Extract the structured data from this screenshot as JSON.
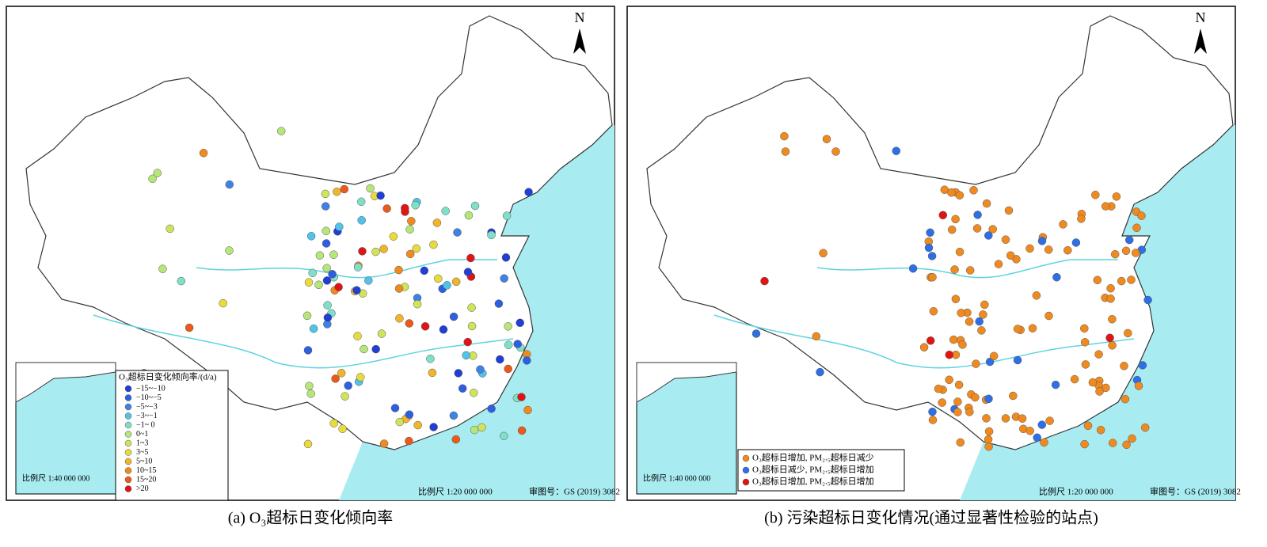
{
  "panels": [
    {
      "north": "N",
      "caption": "(a)  O₃超标日变化倾向率",
      "scale": "比例尺 1:20 000 000",
      "review_no": "审图号：GS (2019) 3082",
      "inset_scale": "比例尺 1:40 000 000",
      "legend": {
        "title": "O₃超标日变化倾向率/(d/a)",
        "items": [
          {
            "label": "−15~−10",
            "color": "#1f3fd6"
          },
          {
            "label": "−10~−5",
            "color": "#2e5fe0"
          },
          {
            "label": "−5~−3",
            "color": "#3f82e6"
          },
          {
            "label": "−3~−1",
            "color": "#4fc4e8"
          },
          {
            "label": "−1~ 0",
            "color": "#7fe0c8"
          },
          {
            "label": "0~1",
            "color": "#b5e67a"
          },
          {
            "label": "1~3",
            "color": "#cfe45a"
          },
          {
            "label": "3~5",
            "color": "#e8dc3c"
          },
          {
            "label": "5~10",
            "color": "#f0b52a"
          },
          {
            "label": "10~15",
            "color": "#f08a1e"
          },
          {
            "label": "15~20",
            "color": "#ec5a1a"
          },
          {
            "label": ">20",
            "color": "#e01414"
          }
        ]
      }
    },
    {
      "north": "N",
      "caption": "(b)  污染超标日变化情况(通过显著性检验的站点)",
      "scale": "比例尺 1:20 000 000",
      "review_no": "审图号：GS (2019) 3082",
      "inset_scale": "比例尺 1:40 000 000",
      "legend": {
        "items": [
          {
            "label": "O₃超标日增加, PM₂.₅超标日减少",
            "color": "#f08a1e"
          },
          {
            "label": "O₃超标日减少, PM₂.₅超标日增加",
            "color": "#2e6fe6"
          },
          {
            "label": "O₃超标日增加, PM₂.₅超标日增加",
            "color": "#e01414"
          }
        ]
      }
    }
  ]
}
